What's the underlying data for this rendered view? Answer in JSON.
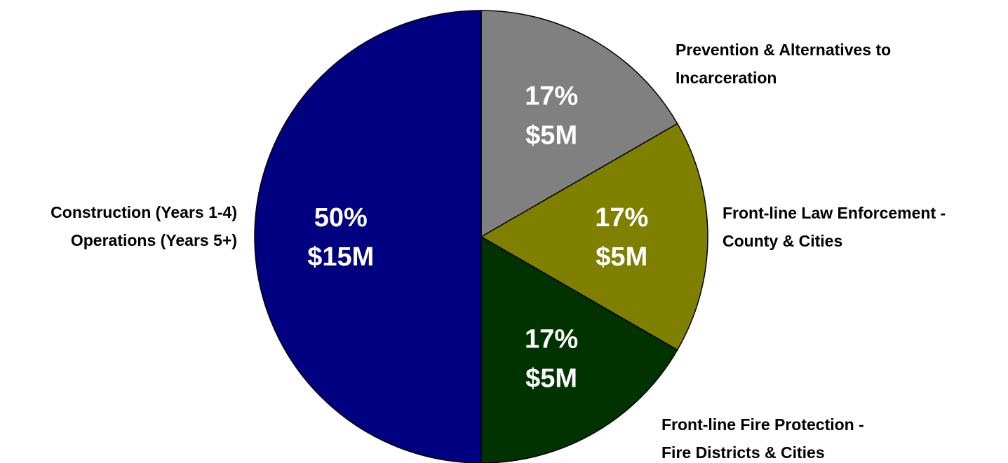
{
  "chart_data": {
    "type": "pie",
    "start_angle": "12 o'clock",
    "direction": "clockwise",
    "slices": [
      {
        "category": "Prevention & Alternatives to Incarceration",
        "label_lines": [
          "Prevention & Alternatives to",
          "Incarceration"
        ],
        "percent": 16.67,
        "percent_label": "17%",
        "amount_label": "$5M",
        "color": "#808080"
      },
      {
        "category": "Front-line Law Enforcement - County & Cities",
        "label_lines": [
          "Front-line Law Enforcement -",
          "County & Cities"
        ],
        "percent": 16.67,
        "percent_label": "17%",
        "amount_label": "$5M",
        "color": "#808000"
      },
      {
        "category": "Front-line Fire Protection - Fire Districts & Cities",
        "label_lines": [
          "Front-line Fire Protection -",
          "Fire Districts & Cities"
        ],
        "percent": 16.67,
        "percent_label": "17%",
        "amount_label": "$5M",
        "color": "#003300"
      },
      {
        "category": "Construction (Years 1-4) Operations (Years 5+)",
        "label_lines": [
          "Construction (Years 1-4)",
          "Operations (Years 5+)"
        ],
        "percent": 50,
        "percent_label": "50%",
        "amount_label": "$15M",
        "color": "#000080"
      }
    ]
  }
}
